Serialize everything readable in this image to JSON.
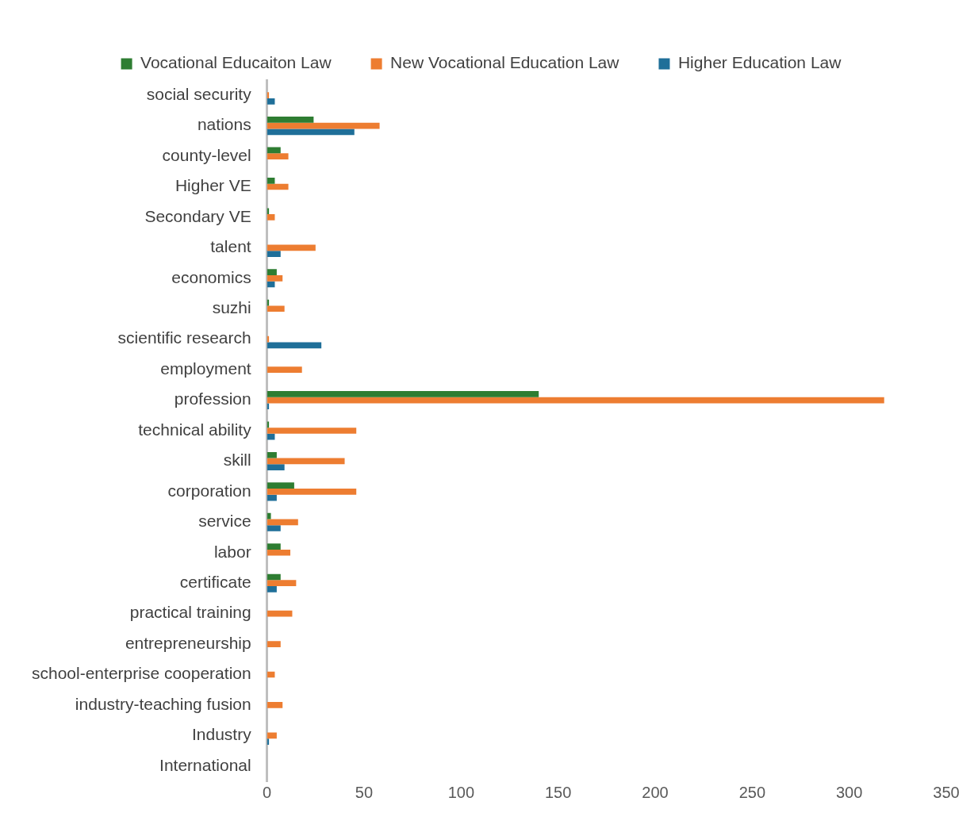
{
  "chart_data": {
    "type": "bar",
    "orientation": "horizontal",
    "categories": [
      "social security",
      "nations",
      "county-level",
      "Higher VE",
      "Secondary VE",
      "talent",
      "economics",
      "suzhi",
      "scientific research",
      "employment",
      "profession",
      "technical ability",
      "skill",
      "corporation",
      "service",
      "labor",
      "certificate",
      "practical training",
      "entrepreneurship",
      "school-enterprise cooperation",
      "industry-teaching fusion",
      "Industry",
      "International"
    ],
    "series": [
      {
        "name": "Vocational Educaiton Law",
        "color": "#2e7d32",
        "values": [
          0,
          24,
          7,
          4,
          1,
          0,
          5,
          1,
          0,
          0,
          140,
          1,
          5,
          14,
          2,
          7,
          7,
          0,
          0,
          0,
          0,
          0,
          0
        ]
      },
      {
        "name": "New Vocational Education Law",
        "color": "#ed7d31",
        "values": [
          1,
          58,
          11,
          11,
          4,
          25,
          8,
          9,
          1,
          18,
          318,
          46,
          40,
          46,
          16,
          12,
          15,
          13,
          7,
          4,
          8,
          5,
          0
        ]
      },
      {
        "name": "Higher Education Law",
        "color": "#1f6f99",
        "values": [
          4,
          45,
          0,
          0,
          0,
          7,
          4,
          0,
          28,
          0,
          1,
          4,
          9,
          5,
          7,
          0,
          5,
          0,
          0,
          0,
          0,
          1,
          0
        ]
      }
    ],
    "xlim": [
      0,
      350
    ],
    "xticks": [
      0,
      50,
      100,
      150,
      200,
      250,
      300,
      350
    ],
    "grid": false,
    "legend": "top"
  }
}
